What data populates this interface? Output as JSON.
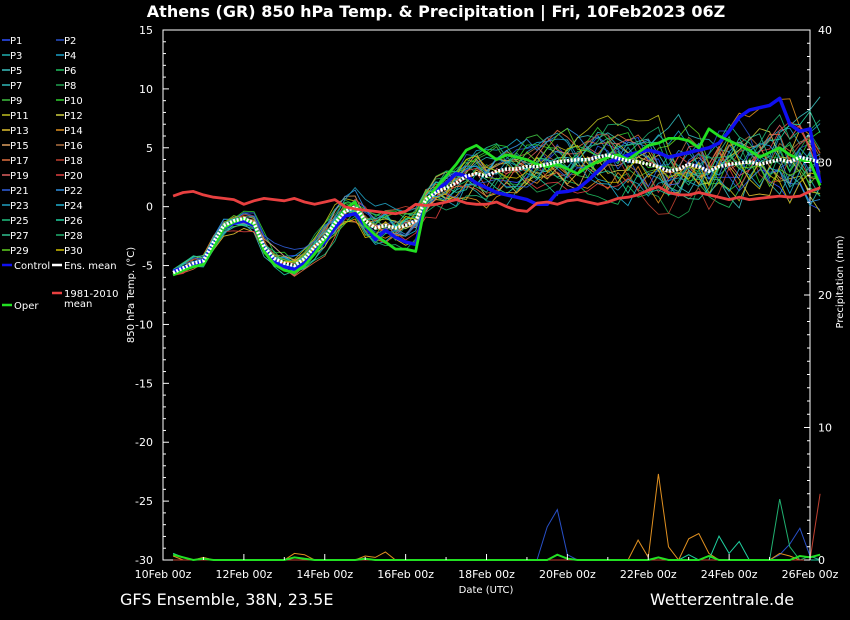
{
  "chart_data": {
    "type": "line",
    "title": "Athens  (GR)  850 hPa Temp. & Precipitation | Fri, 10Feb2023 06Z",
    "xlabel": "Date (UTC)",
    "ylabel": "850 hPa Temp. (°C)",
    "y2label": "Precipitation (mm)",
    "ylim": [
      -30,
      15
    ],
    "y2lim": [
      0,
      40
    ],
    "yticks": [
      "15",
      "10",
      "5",
      "0",
      "-5",
      "-10",
      "-15",
      "-20",
      "-25",
      "-30"
    ],
    "y2ticks": [
      "40",
      "30",
      "20",
      "10",
      "0"
    ],
    "xticks": [
      "10Feb 00z",
      "12Feb 00z",
      "14Feb 00z",
      "16Feb 00z",
      "18Feb 00z",
      "20Feb 00z",
      "22Feb 00z",
      "24Feb 00z",
      "26Feb 00z"
    ],
    "xrange_days": [
      0,
      16
    ],
    "start_day": 0.25,
    "step_days": 0.25,
    "grid": false,
    "legend_position": "left",
    "legend": {
      "members": [
        "P1",
        "P2",
        "P3",
        "P4",
        "P5",
        "P6",
        "P7",
        "P8",
        "P9",
        "P10",
        "P11",
        "P12",
        "P13",
        "P14",
        "P15",
        "P16",
        "P17",
        "P18",
        "P19",
        "P20",
        "P21",
        "P22",
        "P23",
        "P24",
        "P25",
        "P26",
        "P27",
        "P28",
        "P29",
        "P30"
      ],
      "control": "Control",
      "ens_mean": "Ens. mean",
      "climate_line1": "1981-2010",
      "climate_line2": "mean",
      "oper": "Oper"
    },
    "member_colors": [
      "#2d50ff",
      "#2850c8",
      "#20b0b0",
      "#1aa0c8",
      "#3cc0c0",
      "#20c060",
      "#30b8b8",
      "#20a050",
      "#40c040",
      "#30d030",
      "#c0c020",
      "#d0d040",
      "#e0c030",
      "#e09020",
      "#e0a060",
      "#b07040",
      "#e07040",
      "#c04030",
      "#e06060",
      "#e04040",
      "#3060e0",
      "#3090e0",
      "#20a0c0",
      "#20b0d0",
      "#20c080",
      "#20d0a0",
      "#30c090",
      "#20b070",
      "#60d020",
      "#d0c000"
    ],
    "series": [
      {
        "name": "Control",
        "color": "#1010f0",
        "width": 3.5,
        "values": [
          -5.5,
          -5.2,
          -5.0,
          -4.6,
          -3.2,
          -1.8,
          -1.4,
          -1.2,
          -1.6,
          -3.6,
          -4.6,
          -5.1,
          -5.3,
          -4.8,
          -3.8,
          -3.0,
          -1.8,
          -0.8,
          -0.6,
          -1.6,
          -2.8,
          -2.0,
          -2.6,
          -3.0,
          -3.2,
          0.4,
          1.4,
          2.0,
          2.8,
          2.6,
          2.0,
          1.6,
          1.2,
          1.0,
          0.8,
          0.6,
          0.2,
          0.2,
          1.2,
          1.3,
          1.5,
          2.2,
          3.0,
          3.8,
          4.0,
          4.4,
          4.6,
          4.8,
          4.6,
          4.2,
          4.4,
          4.6,
          4.8,
          5.0,
          5.4,
          6.4,
          7.6,
          8.2,
          8.4,
          8.6,
          9.2,
          7.0,
          6.4,
          6.6,
          2.0
        ]
      },
      {
        "name": "Oper",
        "color": "#22e022",
        "width": 2.8,
        "values": [
          -5.8,
          -5.4,
          -5.1,
          -4.9,
          -3.4,
          -1.8,
          -1.3,
          -1.0,
          -1.5,
          -3.8,
          -4.9,
          -5.4,
          -5.6,
          -5.0,
          -4.0,
          -2.8,
          -1.4,
          -0.2,
          0.4,
          -1.6,
          -2.4,
          -3.0,
          -3.6,
          -3.6,
          -3.8,
          0.4,
          1.6,
          2.6,
          3.6,
          4.8,
          5.2,
          4.6,
          4.0,
          4.4,
          4.2,
          4.0,
          3.6,
          3.4,
          3.6,
          3.2,
          2.8,
          3.4,
          3.8,
          4.2,
          4.4,
          4.0,
          4.6,
          5.2,
          5.4,
          5.8,
          5.8,
          5.6,
          5.0,
          6.6,
          6.0,
          5.6,
          5.2,
          4.8,
          4.2,
          4.6,
          5.0,
          4.4,
          4.0,
          3.8,
          1.8
        ]
      },
      {
        "name": "Ens. mean",
        "color": "#ffffff",
        "width": 3.5,
        "values": [
          -5.6,
          -5.2,
          -4.8,
          -4.6,
          -3.0,
          -1.6,
          -1.2,
          -1.0,
          -1.4,
          -3.4,
          -4.4,
          -4.8,
          -5.0,
          -4.4,
          -3.4,
          -2.6,
          -1.4,
          -0.4,
          0.0,
          -1.2,
          -1.8,
          -1.6,
          -1.8,
          -1.6,
          -1.2,
          0.6,
          1.2,
          1.6,
          2.0,
          2.6,
          2.8,
          2.6,
          3.0,
          3.2,
          3.2,
          3.4,
          3.4,
          3.6,
          3.8,
          3.9,
          4.0,
          4.0,
          4.2,
          4.4,
          4.1,
          3.9,
          3.8,
          3.6,
          3.4,
          3.0,
          3.2,
          3.6,
          3.4,
          3.0,
          3.4,
          3.6,
          3.7,
          3.8,
          3.6,
          3.8,
          4.0,
          3.8,
          4.2,
          4.0,
          3.8
        ]
      },
      {
        "name": "1981-2010 mean",
        "color": "#e84040",
        "width": 2.8,
        "values": [
          0.9,
          1.2,
          1.3,
          1.0,
          0.8,
          0.7,
          0.6,
          0.2,
          0.5,
          0.7,
          0.6,
          0.5,
          0.7,
          0.4,
          0.2,
          0.4,
          0.6,
          0.0,
          -0.2,
          -0.3,
          -0.4,
          -0.5,
          -0.6,
          -0.4,
          0.2,
          0.1,
          0.2,
          0.4,
          0.6,
          0.3,
          0.2,
          0.2,
          0.4,
          0.0,
          -0.3,
          -0.4,
          0.3,
          0.4,
          0.2,
          0.5,
          0.6,
          0.4,
          0.2,
          0.4,
          0.7,
          0.8,
          1.0,
          1.4,
          1.7,
          1.2,
          1.0,
          1.0,
          1.2,
          1.0,
          0.8,
          0.6,
          0.8,
          0.6,
          0.7,
          0.8,
          0.9,
          0.8,
          0.9,
          1.3,
          1.6
        ]
      }
    ],
    "precip_series": [
      {
        "name": "P2",
        "color": "#2850c8",
        "values": [
          0,
          0,
          0,
          0,
          0,
          0,
          0,
          0,
          0,
          0,
          0,
          0,
          0,
          0,
          0,
          0,
          0,
          0,
          0,
          0,
          0,
          0,
          0,
          0,
          0,
          0,
          0,
          0,
          0,
          0,
          0,
          0,
          0,
          0,
          0,
          0,
          0,
          2.5,
          3.8,
          0.4,
          0,
          0,
          0,
          0,
          0,
          0,
          0,
          0,
          0,
          0,
          0,
          0,
          0,
          0,
          0,
          0,
          0,
          0,
          0,
          0,
          0.4,
          1.2,
          2.4,
          0.3,
          0
        ]
      },
      {
        "name": "P14",
        "color": "#e09020",
        "values": [
          0.3,
          0,
          0,
          0.2,
          0,
          0,
          0,
          0,
          0,
          0,
          0,
          0,
          0.5,
          0.4,
          0,
          0,
          0,
          0,
          0,
          0.3,
          0.2,
          0.6,
          0,
          0,
          0,
          0,
          0,
          0,
          0,
          0,
          0,
          0,
          0,
          0,
          0,
          0,
          0,
          0,
          0,
          0,
          0,
          0,
          0,
          0,
          0,
          0,
          1.5,
          0.2,
          6.5,
          1.0,
          0,
          1.6,
          2.0,
          0.5,
          0,
          0,
          0,
          0,
          0,
          0,
          0.5,
          0.3,
          0,
          0,
          0
        ]
      },
      {
        "name": "P26",
        "color": "#20d0a0",
        "values": [
          0.5,
          0.2,
          0,
          0,
          0,
          0,
          0,
          0,
          0,
          0,
          0,
          0,
          0,
          0,
          0,
          0,
          0,
          0,
          0,
          0,
          0,
          0,
          0,
          0,
          0,
          0,
          0,
          0,
          0,
          0,
          0,
          0,
          0,
          0,
          0,
          0,
          0,
          0,
          0,
          0,
          0,
          0,
          0,
          0,
          0,
          0,
          0,
          0,
          0,
          0,
          0,
          0.4,
          0,
          0,
          1.8,
          0.5,
          1.4,
          0,
          0,
          0,
          0,
          0,
          0,
          0,
          0
        ]
      },
      {
        "name": "P28",
        "color": "#20b070",
        "values": [
          0,
          0,
          0,
          0,
          0,
          0,
          0,
          0,
          0,
          0,
          0,
          0,
          0,
          0,
          0,
          0,
          0,
          0,
          0,
          0,
          0,
          0,
          0,
          0,
          0,
          0,
          0,
          0,
          0,
          0,
          0,
          0,
          0,
          0,
          0,
          0,
          0,
          0,
          0,
          0,
          0,
          0,
          0,
          0,
          0,
          0,
          0,
          0,
          0,
          0,
          0,
          0,
          0,
          0,
          0,
          0,
          0,
          0,
          0,
          0,
          4.6,
          1.0,
          0,
          0.3,
          0
        ]
      },
      {
        "name": "P18",
        "color": "#c04030",
        "values": [
          0,
          0,
          0,
          0,
          0,
          0,
          0,
          0,
          0,
          0,
          0,
          0,
          0,
          0,
          0,
          0,
          0,
          0,
          0,
          0,
          0,
          0,
          0,
          0,
          0,
          0,
          0,
          0,
          0,
          0,
          0,
          0,
          0,
          0,
          0,
          0,
          0,
          0,
          0,
          0,
          0,
          0,
          0,
          0,
          0,
          0,
          0,
          0,
          0,
          0,
          0,
          0,
          0,
          0,
          0,
          0,
          0,
          0,
          0,
          0,
          0,
          0,
          0,
          0,
          5.0
        ]
      },
      {
        "name": "Oper",
        "color": "#22e022",
        "values": [
          0.4,
          0.2,
          0,
          0.1,
          0,
          0,
          0,
          0,
          0,
          0,
          0,
          0,
          0.2,
          0.1,
          0,
          0,
          0,
          0,
          0,
          0.1,
          0,
          0,
          0,
          0,
          0,
          0,
          0,
          0,
          0,
          0,
          0,
          0,
          0,
          0,
          0,
          0,
          0,
          0,
          0.4,
          0.1,
          0,
          0,
          0,
          0,
          0,
          0,
          0,
          0,
          0.2,
          0,
          0,
          0,
          0,
          0.3,
          0,
          0,
          0,
          0,
          0,
          0,
          0,
          0,
          0.3,
          0.2,
          0.4
        ]
      }
    ]
  },
  "footer": {
    "left": "GFS Ensemble, 38N, 23.5E",
    "right": "Wetterzentrale.de"
  }
}
